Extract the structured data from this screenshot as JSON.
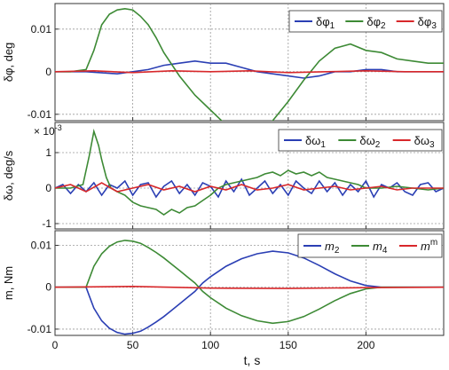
{
  "xlabel": "t, s",
  "chart_data": [
    {
      "type": "line",
      "ylabel": "δφ, deg",
      "y_multiplier": "",
      "xlim": [
        0,
        250
      ],
      "ylim": [
        -0.0115,
        0.016
      ],
      "xticks": [
        0,
        50,
        100,
        150,
        200
      ],
      "yticks": [
        -0.01,
        0,
        0.01
      ],
      "ytick_labels": [
        "-0.01",
        "0",
        "0.01"
      ],
      "grid": true,
      "legend_position": "top-right",
      "series": [
        {
          "name": "δφ",
          "sub": "1",
          "color": "#2b3fb4",
          "x": [
            0,
            20,
            40,
            60,
            70,
            80,
            90,
            100,
            110,
            120,
            130,
            140,
            150,
            160,
            170,
            180,
            190,
            200,
            210,
            220,
            230,
            240,
            250
          ],
          "y": [
            0,
            0,
            -0.0005,
            0.0005,
            0.0015,
            0.002,
            0.0025,
            0.002,
            0.002,
            0.001,
            0,
            -0.0005,
            -0.001,
            -0.0015,
            -0.001,
            0,
            0,
            0.0005,
            0.0005,
            0,
            0,
            0,
            0
          ]
        },
        {
          "name": "δφ",
          "sub": "2",
          "color": "#3d8a35",
          "x": [
            0,
            10,
            20,
            25,
            30,
            35,
            40,
            45,
            50,
            55,
            60,
            65,
            70,
            80,
            90,
            100,
            110,
            120,
            130,
            140,
            150,
            160,
            170,
            180,
            190,
            200,
            210,
            220,
            230,
            240,
            250
          ],
          "y": [
            0,
            0,
            0.0005,
            0.005,
            0.011,
            0.0135,
            0.0145,
            0.0148,
            0.0145,
            0.013,
            0.011,
            0.008,
            0.0045,
            -0.001,
            -0.0055,
            -0.009,
            -0.0125,
            -0.0138,
            -0.0135,
            -0.0115,
            -0.007,
            -0.002,
            0.0025,
            0.0055,
            0.0065,
            0.005,
            0.0045,
            0.003,
            0.0025,
            0.002,
            0.002
          ]
        },
        {
          "name": "δφ",
          "sub": "3",
          "color": "#d8282b",
          "x": [
            0,
            25,
            50,
            75,
            100,
            125,
            150,
            175,
            200,
            225,
            250
          ],
          "y": [
            0,
            0.0002,
            -0.0002,
            0.0002,
            0,
            0.0002,
            -0.0002,
            0,
            0.0002,
            0,
            0
          ]
        }
      ]
    },
    {
      "type": "line",
      "ylabel": "δω, deg/s",
      "y_multiplier": "× 10",
      "y_multiplier_exp": "-3",
      "xlim": [
        0,
        250
      ],
      "ylim": [
        -1.15,
        1.85
      ],
      "xticks": [
        0,
        50,
        100,
        150,
        200
      ],
      "yticks": [
        -1,
        0,
        1
      ],
      "ytick_labels": [
        "-1",
        "0",
        "1"
      ],
      "grid": true,
      "legend_position": "top-right",
      "series": [
        {
          "name": "δω",
          "sub": "1",
          "color": "#2b3fb4",
          "x": [
            0,
            5,
            10,
            15,
            20,
            25,
            30,
            35,
            40,
            45,
            50,
            55,
            60,
            65,
            70,
            75,
            80,
            85,
            90,
            95,
            100,
            105,
            110,
            115,
            120,
            125,
            130,
            135,
            140,
            145,
            150,
            155,
            160,
            165,
            170,
            175,
            180,
            185,
            190,
            195,
            200,
            205,
            210,
            215,
            220,
            225,
            230,
            235,
            240,
            245,
            250
          ],
          "y": [
            0,
            0.1,
            -0.15,
            0.1,
            -0.1,
            0.15,
            -0.2,
            0.1,
            0,
            0.2,
            -0.2,
            0.1,
            0.15,
            -0.25,
            0.05,
            0.2,
            -0.15,
            0.1,
            -0.2,
            0.15,
            0.05,
            -0.25,
            0.2,
            -0.1,
            0.25,
            -0.2,
            0,
            0.2,
            -0.15,
            0.1,
            -0.2,
            0.2,
            0,
            -0.15,
            0.2,
            -0.1,
            0.15,
            -0.2,
            0.1,
            -0.1,
            0.2,
            -0.25,
            0.1,
            0,
            0.15,
            -0.1,
            -0.2,
            0.1,
            0.15,
            -0.1,
            0
          ]
        },
        {
          "name": "δω",
          "sub": "2",
          "color": "#3d8a35",
          "x": [
            0,
            10,
            18,
            22,
            25,
            28,
            30,
            33,
            36,
            40,
            45,
            50,
            55,
            60,
            65,
            70,
            75,
            80,
            85,
            90,
            95,
            100,
            105,
            110,
            120,
            130,
            135,
            140,
            145,
            150,
            155,
            160,
            165,
            170,
            175,
            180,
            185,
            190,
            195,
            200,
            210,
            220,
            230,
            240,
            250
          ],
          "y": [
            0,
            0,
            0.1,
            0.9,
            1.6,
            1.2,
            0.8,
            0.3,
            0,
            -0.1,
            -0.2,
            -0.4,
            -0.5,
            -0.55,
            -0.6,
            -0.75,
            -0.6,
            -0.7,
            -0.55,
            -0.5,
            -0.35,
            -0.2,
            0,
            0.1,
            0.2,
            0.3,
            0.4,
            0.45,
            0.35,
            0.5,
            0.4,
            0.45,
            0.35,
            0.45,
            0.3,
            0.25,
            0.2,
            0.15,
            0.1,
            0,
            0,
            0.05,
            0,
            -0.05,
            0
          ]
        },
        {
          "name": "δω",
          "sub": "3",
          "color": "#d8282b",
          "x": [
            0,
            10,
            20,
            30,
            40,
            50,
            60,
            70,
            80,
            90,
            100,
            110,
            120,
            130,
            140,
            150,
            160,
            170,
            180,
            190,
            200,
            210,
            220,
            230,
            240,
            250
          ],
          "y": [
            0,
            0.1,
            -0.1,
            0.15,
            -0.1,
            0,
            0.1,
            -0.05,
            0.05,
            -0.1,
            0.05,
            -0.05,
            0.1,
            -0.05,
            0,
            0.1,
            -0.05,
            0,
            0.05,
            -0.05,
            0,
            0.05,
            -0.05,
            0,
            0,
            0
          ]
        }
      ]
    },
    {
      "type": "line",
      "ylabel": "m, Nm",
      "y_multiplier": "",
      "xlim": [
        0,
        250
      ],
      "ylim": [
        -0.0115,
        0.0135
      ],
      "xticks": [
        0,
        50,
        100,
        150,
        200
      ],
      "xtick_labels": [
        "0",
        "50",
        "100",
        "150",
        "200"
      ],
      "yticks": [
        -0.01,
        0,
        0.01
      ],
      "ytick_labels": [
        "-0.01",
        "0",
        "0.01"
      ],
      "grid": true,
      "legend_position": "top-right",
      "series": [
        {
          "name": "m",
          "sub": "2",
          "color": "#2b3fb4",
          "x": [
            0,
            20,
            22,
            25,
            30,
            35,
            40,
            45,
            50,
            55,
            60,
            65,
            70,
            75,
            80,
            85,
            90,
            95,
            100,
            110,
            120,
            130,
            140,
            150,
            160,
            170,
            180,
            190,
            200,
            210,
            220,
            230,
            240,
            250
          ],
          "y": [
            0,
            0,
            -0.002,
            -0.005,
            -0.008,
            -0.0098,
            -0.0108,
            -0.0112,
            -0.011,
            -0.0105,
            -0.0095,
            -0.0083,
            -0.007,
            -0.0055,
            -0.004,
            -0.0025,
            -0.001,
            0.001,
            0.0025,
            0.005,
            0.0068,
            0.008,
            0.0086,
            0.0082,
            0.007,
            0.0052,
            0.0032,
            0.0015,
            0.0004,
            0,
            0,
            0,
            0,
            0
          ]
        },
        {
          "name": "m",
          "sub": "4",
          "color": "#3d8a35",
          "x": [
            0,
            20,
            22,
            25,
            30,
            35,
            40,
            45,
            50,
            55,
            60,
            65,
            70,
            75,
            80,
            85,
            90,
            95,
            100,
            110,
            120,
            130,
            140,
            150,
            160,
            170,
            180,
            190,
            200,
            210,
            220,
            230,
            240,
            250
          ],
          "y": [
            0,
            0,
            0.002,
            0.005,
            0.008,
            0.0098,
            0.0108,
            0.0112,
            0.011,
            0.0105,
            0.0095,
            0.0083,
            0.007,
            0.0055,
            0.004,
            0.0025,
            0.001,
            -0.001,
            -0.0025,
            -0.005,
            -0.0068,
            -0.008,
            -0.0086,
            -0.0082,
            -0.007,
            -0.0052,
            -0.0032,
            -0.0015,
            -0.0004,
            0,
            0,
            0,
            0,
            0
          ]
        },
        {
          "name": "m",
          "sup": "m",
          "color": "#d8282b",
          "x": [
            0,
            50,
            100,
            150,
            200,
            250
          ],
          "y": [
            0,
            0.0002,
            -0.0002,
            -0.0003,
            -0.0001,
            0
          ]
        }
      ]
    }
  ]
}
